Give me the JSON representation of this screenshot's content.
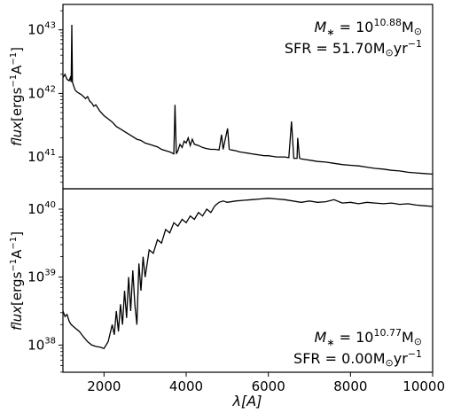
{
  "chart_data": [
    {
      "type": "line",
      "panel": "top",
      "yscale": "log",
      "xlim": [
        1000,
        10000
      ],
      "ylim_log10": [
        40.5,
        43.4
      ],
      "ylabel": {
        "prefix": "flux",
        "units": "[ergs",
        "units_exp": "−1",
        "units_tail": "A",
        "units_tail_exp": "−1",
        "close": "]"
      },
      "yticks": [
        {
          "base": "10",
          "exp": "41",
          "log": 41
        },
        {
          "base": "10",
          "exp": "42",
          "log": 42
        },
        {
          "base": "10",
          "exp": "43",
          "log": 43
        }
      ],
      "annotation": {
        "mass_label": "M",
        "mass_sub": "∗",
        "mass_eq": " = 10",
        "mass_exp": "10.88",
        "mass_unit": "M",
        "mass_unit_sub": "⊙",
        "sfr_label": "SFR = 51.70M",
        "sfr_unit_sub": "⊙",
        "sfr_unit": "yr",
        "sfr_exp": "−1"
      },
      "series": [
        {
          "x": [
            1000,
            1050,
            1100,
            1150,
            1180,
            1200,
            1216,
            1230,
            1260,
            1300,
            1350,
            1400,
            1450,
            1500,
            1550,
            1600,
            1650,
            1700,
            1750,
            1800,
            1900,
            2000,
            2100,
            2200,
            2300,
            2400,
            2500,
            2600,
            2700,
            2800,
            2900,
            3000,
            3100,
            3200,
            3300,
            3400,
            3500,
            3600,
            3700,
            3727,
            3760,
            3800,
            3850,
            3900,
            3950,
            4000,
            4050,
            4100,
            4150,
            4200,
            4300,
            4400,
            4500,
            4600,
            4700,
            4800,
            4861,
            4900,
            4959,
            5007,
            5050,
            5100,
            5200,
            5300,
            5400,
            5500,
            5600,
            5700,
            5800,
            5900,
            6000,
            6100,
            6200,
            6300,
            6400,
            6500,
            6563,
            6620,
            6650,
            6700,
            6716,
            6760,
            6800,
            6900,
            7000,
            7200,
            7400,
            7600,
            7800,
            8000,
            8200,
            8400,
            8600,
            8800,
            9000,
            9200,
            9400,
            9600,
            9800,
            10000
          ],
          "y_log10": [
            42.25,
            42.3,
            42.22,
            42.2,
            42.25,
            42.18,
            43.08,
            42.18,
            42.12,
            42.05,
            42.02,
            42.0,
            41.98,
            41.95,
            41.92,
            41.95,
            41.88,
            41.85,
            41.8,
            41.82,
            41.72,
            41.65,
            41.6,
            41.55,
            41.48,
            41.44,
            41.4,
            41.36,
            41.32,
            41.28,
            41.26,
            41.22,
            41.2,
            41.18,
            41.16,
            41.12,
            41.1,
            41.08,
            41.05,
            41.82,
            41.05,
            41.1,
            41.2,
            41.15,
            41.25,
            41.22,
            41.3,
            41.18,
            41.28,
            41.2,
            41.18,
            41.15,
            41.13,
            41.12,
            41.12,
            41.11,
            41.35,
            41.12,
            41.3,
            41.45,
            41.12,
            41.11,
            41.1,
            41.08,
            41.07,
            41.06,
            41.05,
            41.04,
            41.03,
            41.02,
            41.02,
            41.01,
            41.0,
            41.0,
            41.0,
            40.99,
            41.56,
            40.98,
            40.98,
            40.98,
            41.3,
            40.98,
            40.97,
            40.96,
            40.95,
            40.93,
            40.92,
            40.9,
            40.88,
            40.87,
            40.86,
            40.84,
            40.82,
            40.81,
            40.79,
            40.78,
            40.76,
            40.75,
            40.74,
            40.73
          ]
        }
      ]
    },
    {
      "type": "line",
      "panel": "bottom",
      "yscale": "log",
      "xlim": [
        1000,
        10000
      ],
      "ylim_log10": [
        37.6,
        40.3
      ],
      "xlabel": "λ[A]",
      "xticks": [
        2000,
        4000,
        6000,
        8000,
        10000
      ],
      "ylabel": {
        "prefix": "flux",
        "units": "[ergs",
        "units_exp": "−1",
        "units_tail": "A",
        "units_tail_exp": "−1",
        "close": "]"
      },
      "yticks": [
        {
          "base": "10",
          "exp": "38",
          "log": 38
        },
        {
          "base": "10",
          "exp": "39",
          "log": 39
        },
        {
          "base": "10",
          "exp": "40",
          "log": 40
        }
      ],
      "annotation": {
        "mass_label": "M",
        "mass_sub": "∗",
        "mass_eq": " = 10",
        "mass_exp": "10.77",
        "mass_unit": "M",
        "mass_unit_sub": "⊙",
        "sfr_label": "SFR = 0.00M",
        "sfr_unit_sub": "⊙",
        "sfr_unit": "yr",
        "sfr_exp": "−1"
      },
      "series": [
        {
          "x": [
            1000,
            1050,
            1100,
            1150,
            1200,
            1300,
            1400,
            1500,
            1600,
            1700,
            1800,
            1900,
            2000,
            2100,
            2200,
            2250,
            2300,
            2350,
            2400,
            2450,
            2500,
            2550,
            2600,
            2650,
            2700,
            2750,
            2800,
            2850,
            2900,
            2950,
            3000,
            3100,
            3200,
            3300,
            3400,
            3500,
            3600,
            3700,
            3800,
            3900,
            4000,
            4100,
            4200,
            4300,
            4400,
            4500,
            4600,
            4700,
            4800,
            4900,
            5000,
            5200,
            5400,
            5600,
            5800,
            6000,
            6200,
            6400,
            6600,
            6800,
            7000,
            7200,
            7400,
            7600,
            7800,
            8000,
            8200,
            8400,
            8600,
            8800,
            9000,
            9200,
            9400,
            9600,
            9800,
            10000
          ],
          "y_log10": [
            38.5,
            38.42,
            38.45,
            38.35,
            38.3,
            38.25,
            38.2,
            38.12,
            38.05,
            38.0,
            37.98,
            37.97,
            37.95,
            38.05,
            38.3,
            38.15,
            38.5,
            38.2,
            38.6,
            38.3,
            38.8,
            38.4,
            39.0,
            38.5,
            39.1,
            38.6,
            38.3,
            39.2,
            38.8,
            39.3,
            39.0,
            39.4,
            39.35,
            39.55,
            39.5,
            39.7,
            39.65,
            39.8,
            39.75,
            39.85,
            39.8,
            39.9,
            39.85,
            39.95,
            39.9,
            40.0,
            39.95,
            40.05,
            40.1,
            40.12,
            40.1,
            40.12,
            40.13,
            40.14,
            40.15,
            40.16,
            40.15,
            40.14,
            40.12,
            40.1,
            40.12,
            40.1,
            40.11,
            40.14,
            40.09,
            40.1,
            40.08,
            40.1,
            40.09,
            40.08,
            40.09,
            40.07,
            40.08,
            40.06,
            40.05,
            40.04
          ]
        }
      ]
    }
  ]
}
